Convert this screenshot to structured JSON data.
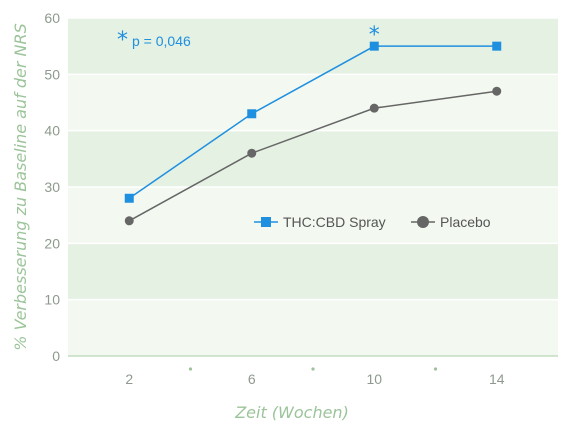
{
  "chart_data": {
    "type": "line",
    "xlabel": "Zeit (Wochen)",
    "ylabel": "% Verbesserung zu Baseline auf der NRS",
    "x": [
      2,
      6,
      10,
      14
    ],
    "xlim": [
      0,
      16
    ],
    "ylim": [
      0,
      60
    ],
    "yticks": [
      0,
      10,
      20,
      30,
      40,
      50,
      60
    ],
    "grid": "horizontal bands",
    "legend_position": "center-right",
    "series": [
      {
        "name": "THC:CBD Spray",
        "values": [
          28,
          43,
          55,
          55
        ],
        "color": "#1f8fe0",
        "marker": "square"
      },
      {
        "name": "Placebo",
        "values": [
          24,
          36,
          44,
          47
        ],
        "color": "#666666",
        "marker": "circle"
      }
    ],
    "annotation": {
      "text": "p = 0,046",
      "symbol": "*"
    },
    "significance_marker": {
      "symbol": "*",
      "x": 10
    }
  },
  "colors": {
    "band_light": "#f3f9f1",
    "band_dark": "#e5f1e2",
    "grid_line": "#ffffff",
    "axis_line": "#c3ddbf",
    "tick_mark": "#9cc49a"
  }
}
